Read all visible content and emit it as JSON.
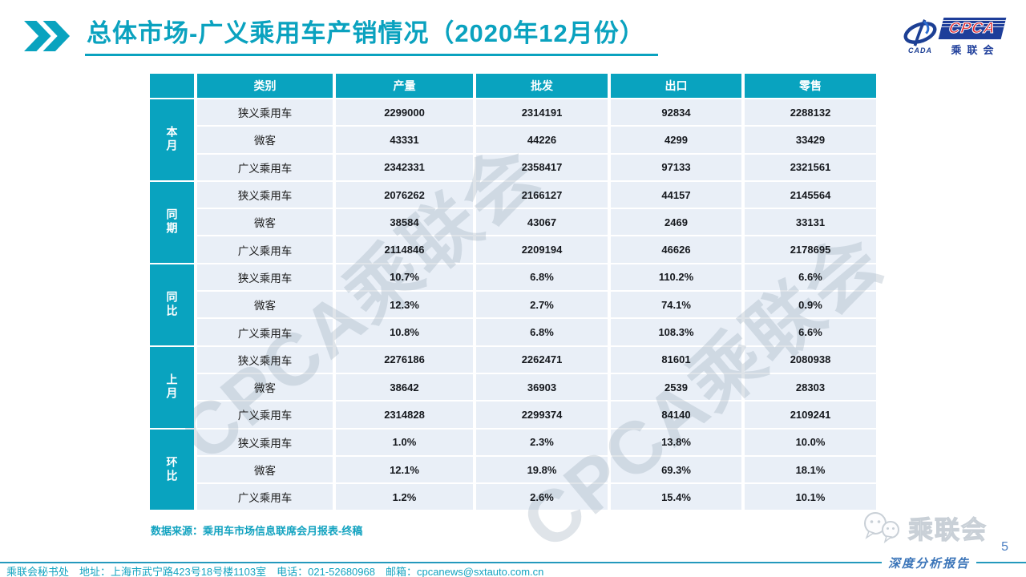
{
  "slide": {
    "title": "总体市场-广义乘用车产销情况（2020年12月份）",
    "source_note": "数据来源：乘用车市场信息联席会月报表-终稿",
    "contact": "乘联会秘书处　地址：上海市武宁路423号18号楼1103室　电话：021-52680968　邮箱：cpcanews@sxtauto.com.cn",
    "report_tag": "深度分析报告",
    "page_number": "5",
    "watermark_text": "CPCA乘联会",
    "wechat_badge_text": "乘联会"
  },
  "logo": {
    "swoosh_caption": "CADA",
    "box_text": "CPCA",
    "box_caption": "乘联会"
  },
  "chart_data": {
    "type": "table",
    "title": "总体市场-广义乘用车产销情况（2020年12月份）",
    "columns": [
      "类别",
      "产量",
      "批发",
      "出口",
      "零售"
    ],
    "row_groups": [
      {
        "label": "本月",
        "rows": [
          [
            "狭义乘用车",
            "2299000",
            "2314191",
            "92834",
            "2288132"
          ],
          [
            "微客",
            "43331",
            "44226",
            "4299",
            "33429"
          ],
          [
            "广义乘用车",
            "2342331",
            "2358417",
            "97133",
            "2321561"
          ]
        ]
      },
      {
        "label": "同期",
        "rows": [
          [
            "狭义乘用车",
            "2076262",
            "2166127",
            "44157",
            "2145564"
          ],
          [
            "微客",
            "38584",
            "43067",
            "2469",
            "33131"
          ],
          [
            "广义乘用车",
            "2114846",
            "2209194",
            "46626",
            "2178695"
          ]
        ]
      },
      {
        "label": "同比",
        "rows": [
          [
            "狭义乘用车",
            "10.7%",
            "6.8%",
            "110.2%",
            "6.6%"
          ],
          [
            "微客",
            "12.3%",
            "2.7%",
            "74.1%",
            "0.9%"
          ],
          [
            "广义乘用车",
            "10.8%",
            "6.8%",
            "108.3%",
            "6.6%"
          ]
        ]
      },
      {
        "label": "上月",
        "rows": [
          [
            "狭义乘用车",
            "2276186",
            "2262471",
            "81601",
            "2080938"
          ],
          [
            "微客",
            "38642",
            "36903",
            "2539",
            "28303"
          ],
          [
            "广义乘用车",
            "2314828",
            "2299374",
            "84140",
            "2109241"
          ]
        ]
      },
      {
        "label": "环比",
        "rows": [
          [
            "狭义乘用车",
            "1.0%",
            "2.3%",
            "13.8%",
            "10.0%"
          ],
          [
            "微客",
            "12.1%",
            "19.8%",
            "69.3%",
            "18.1%"
          ],
          [
            "广义乘用车",
            "1.2%",
            "2.6%",
            "15.4%",
            "10.1%"
          ]
        ]
      }
    ]
  },
  "colors": {
    "accent_teal": "#09a3bf",
    "row_bg": "#e9eff7",
    "logo_navy": "#1e3e9a",
    "logo_red": "#e0262d",
    "report_tag_blue": "#3a74b8",
    "watermark_gray": "#8ea1b2"
  }
}
